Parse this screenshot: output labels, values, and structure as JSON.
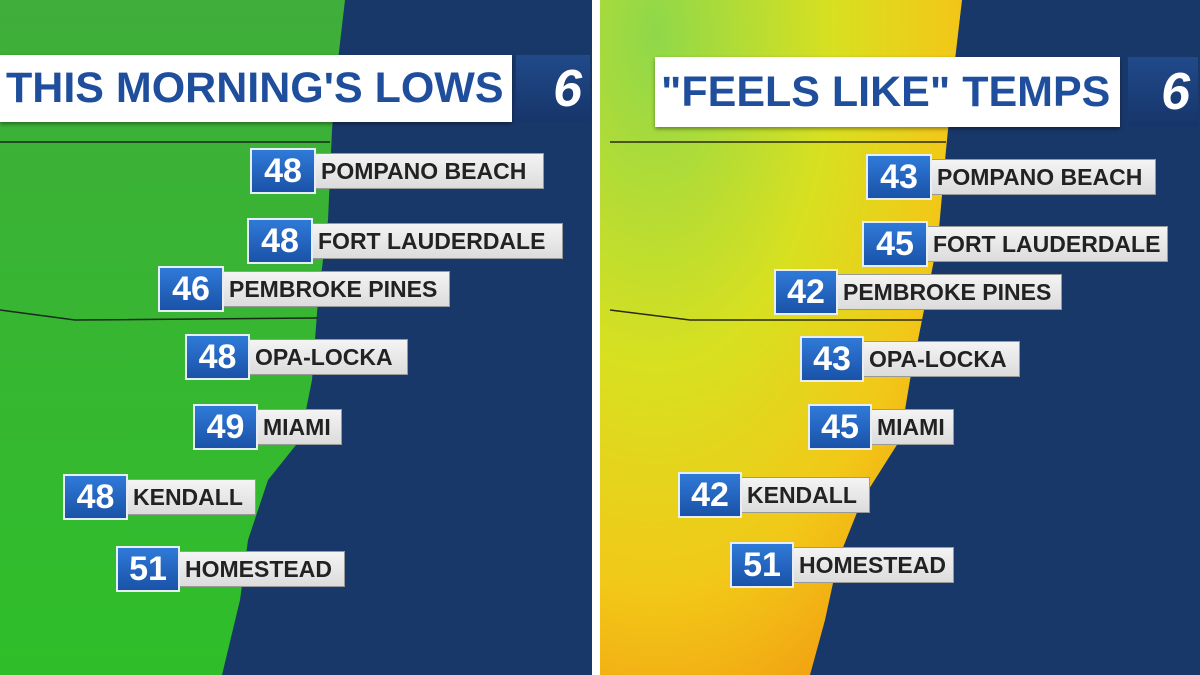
{
  "panels": [
    {
      "title": "THIS MORNING'S LOWS",
      "logo": "6",
      "locations": [
        {
          "temp": "48",
          "name": "POMPANO BEACH"
        },
        {
          "temp": "48",
          "name": "FORT LAUDERDALE"
        },
        {
          "temp": "46",
          "name": "PEMBROKE PINES"
        },
        {
          "temp": "48",
          "name": "OPA-LOCKA"
        },
        {
          "temp": "49",
          "name": "MIAMI"
        },
        {
          "temp": "48",
          "name": "KENDALL"
        },
        {
          "temp": "51",
          "name": "HOMESTEAD"
        }
      ]
    },
    {
      "title": "\"FEELS LIKE\" TEMPS",
      "logo": "6",
      "locations": [
        {
          "temp": "43",
          "name": "POMPANO BEACH"
        },
        {
          "temp": "45",
          "name": "FORT LAUDERDALE"
        },
        {
          "temp": "42",
          "name": "PEMBROKE PINES"
        },
        {
          "temp": "43",
          "name": "OPA-LOCKA"
        },
        {
          "temp": "45",
          "name": "MIAMI"
        },
        {
          "temp": "42",
          "name": "KENDALL"
        },
        {
          "temp": "51",
          "name": "HOMESTEAD"
        }
      ]
    }
  ]
}
